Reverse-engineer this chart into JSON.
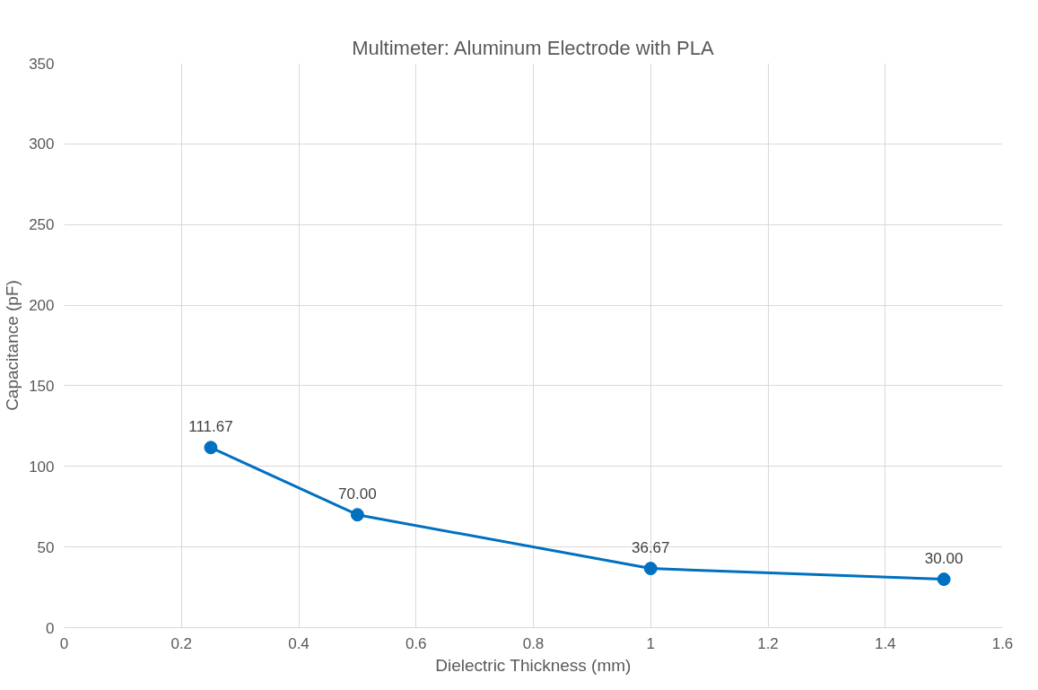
{
  "chart_data": {
    "type": "line",
    "title": "Multimeter: Aluminum Electrode with PLA",
    "xlabel": "Dielectric Thickness (mm)",
    "ylabel": "Capacitance (pF)",
    "x": [
      0.25,
      0.5,
      1,
      1.5
    ],
    "series": [
      {
        "color": "#0070c0",
        "values": [
          111.67,
          70.0,
          36.67,
          30.0
        ],
        "value_labels": [
          "111.67",
          "70.00",
          "36.67",
          "30.00"
        ]
      }
    ],
    "xlim": [
      0,
      1.6
    ],
    "xticks": [
      0,
      0.2,
      0.4,
      0.6,
      0.8,
      1,
      1.2,
      1.4,
      1.6
    ],
    "ylim": [
      0,
      350
    ],
    "yticks": [
      0,
      50,
      100,
      150,
      200,
      250,
      300,
      350
    ],
    "grid": true,
    "marker": "circle",
    "line_style": "solid"
  }
}
